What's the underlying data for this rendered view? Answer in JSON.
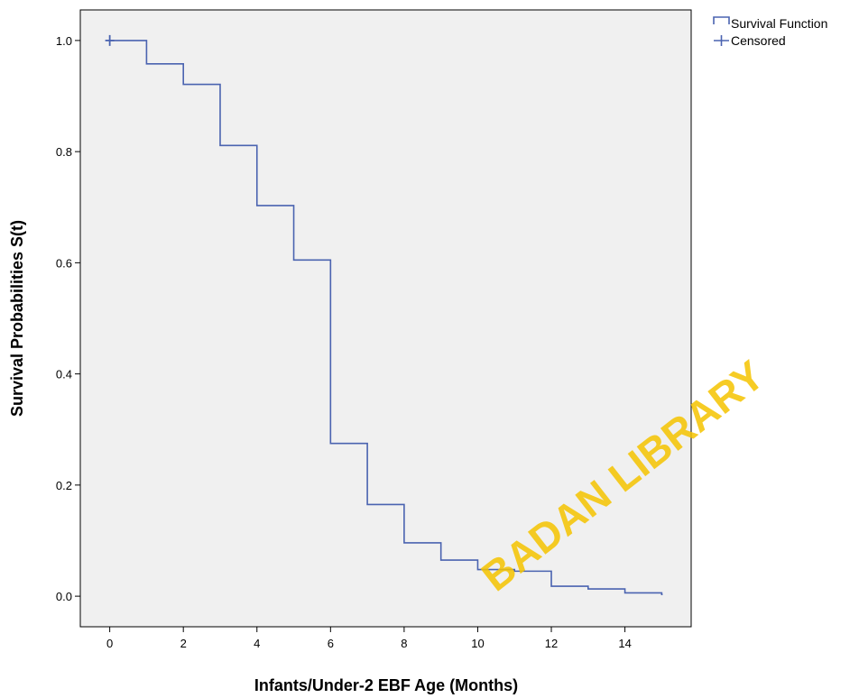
{
  "chart_data": {
    "type": "line",
    "step": true,
    "xlabel": "Infants/Under-2 EBF Age (Months)",
    "ylabel": "Survival Probabilities S(t)",
    "xlim": [
      -0.8,
      15.8
    ],
    "ylim": [
      -0.055,
      1.055
    ],
    "x_ticks": [
      "0",
      "2",
      "4",
      "6",
      "8",
      "10",
      "12",
      "14"
    ],
    "y_ticks": [
      "0.0",
      "0.2",
      "0.4",
      "0.6",
      "0.8",
      "1.0"
    ],
    "grid": false,
    "legend_position": "top-right, outside plot",
    "series": [
      {
        "name": "Survival Function",
        "color": "#4a63b0",
        "x": [
          0,
          1,
          2,
          3,
          4,
          5,
          6,
          7,
          8,
          9,
          10,
          11,
          12,
          13,
          14,
          15
        ],
        "y": [
          1.0,
          0.958,
          0.921,
          0.811,
          0.703,
          0.605,
          0.275,
          0.165,
          0.096,
          0.065,
          0.048,
          0.045,
          0.018,
          0.013,
          0.006,
          0.003
        ]
      },
      {
        "name": "Censored",
        "color": "#4a63b0",
        "marker": "+",
        "x": [
          0
        ],
        "y": [
          1.0
        ]
      }
    ],
    "plot_background": "#f0f0f0"
  },
  "watermark": {
    "text": "BADAN LIBRARY",
    "color": "#f5c400"
  }
}
